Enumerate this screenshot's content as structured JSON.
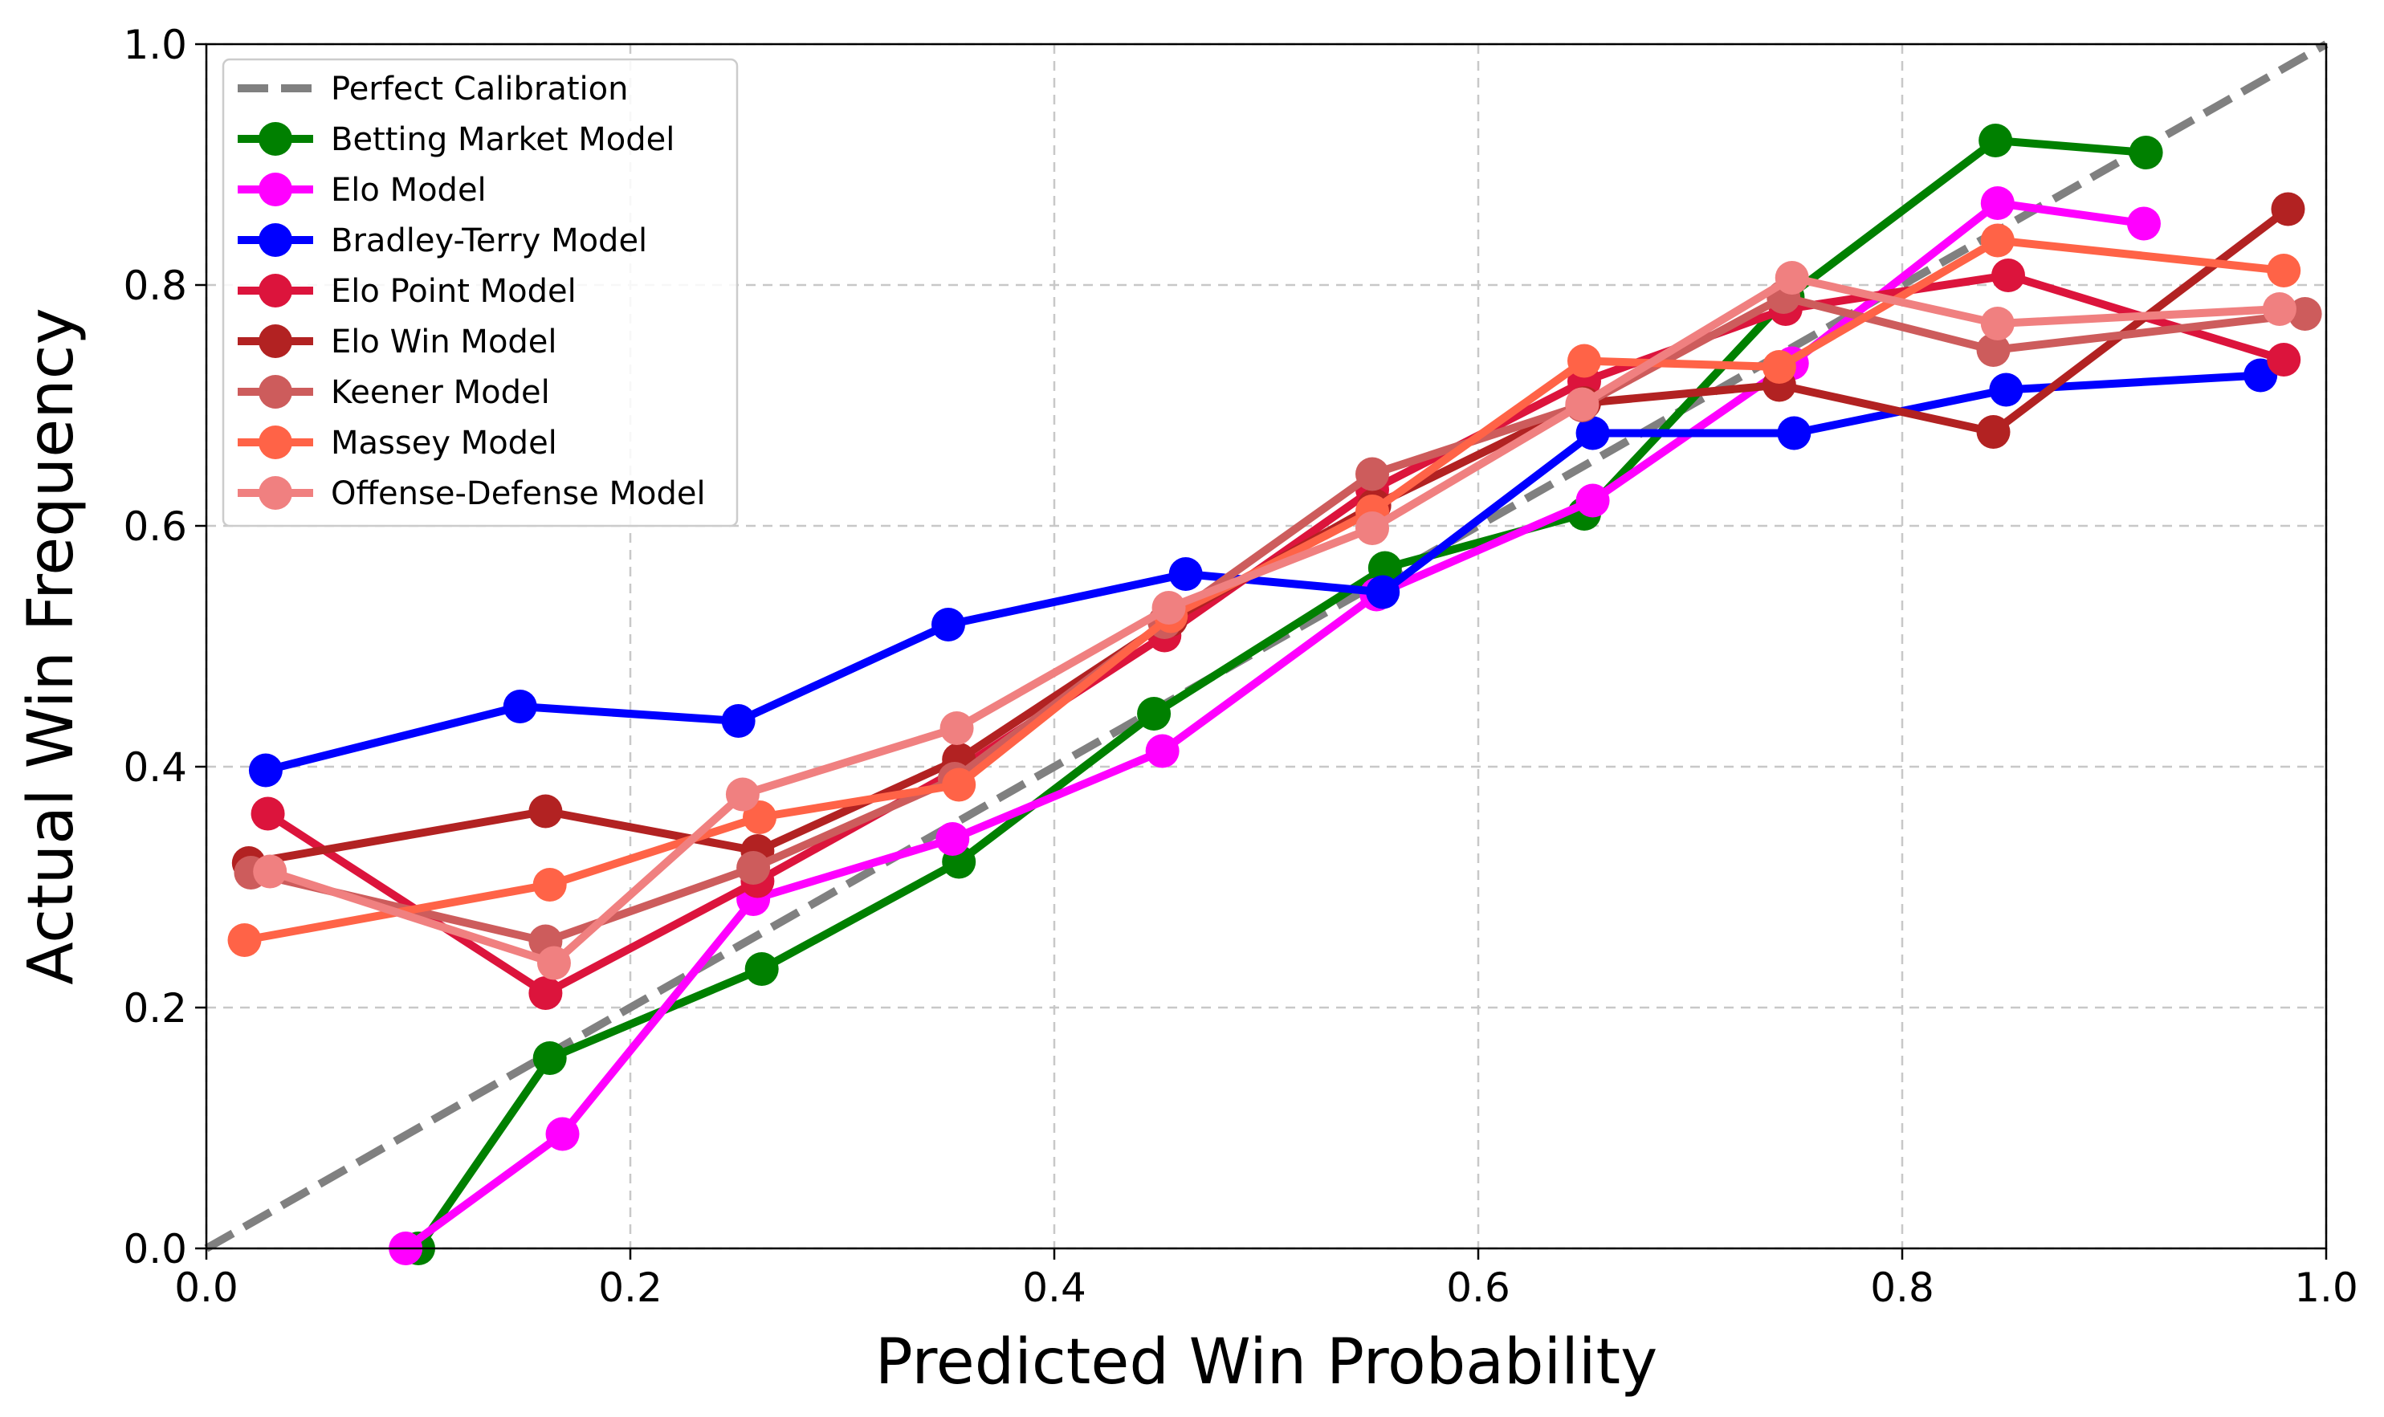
{
  "chart_data": {
    "type": "line",
    "xlabel": "Predicted Win Probability",
    "ylabel": "Actual Win Frequency",
    "xlim": [
      0.0,
      1.0
    ],
    "ylim": [
      0.0,
      1.0
    ],
    "xticks": [
      0.0,
      0.2,
      0.4,
      0.6,
      0.8,
      1.0
    ],
    "yticks": [
      0.0,
      0.2,
      0.4,
      0.6,
      0.8,
      1.0
    ],
    "xtick_labels": [
      "0.0",
      "0.2",
      "0.4",
      "0.6",
      "0.8",
      "1.0"
    ],
    "ytick_labels": [
      "0.0",
      "0.2",
      "0.4",
      "0.6",
      "0.8",
      "1.0"
    ],
    "grid": true,
    "legend_position": "top-left",
    "reference_line": {
      "name": "Perfect Calibration",
      "color": "#808080",
      "x": [
        0.0,
        1.0
      ],
      "y": [
        0.0,
        1.0
      ]
    },
    "series": [
      {
        "name": "Betting Market Model",
        "color": "#008000",
        "x": [
          0.1,
          0.162,
          0.262,
          0.355,
          0.447,
          0.556,
          0.65,
          0.746,
          0.844,
          0.915
        ],
        "y": [
          0.0,
          0.158,
          0.232,
          0.321,
          0.444,
          0.565,
          0.61,
          0.79,
          0.92,
          0.91
        ]
      },
      {
        "name": "Elo Model",
        "color": "#ff00ff",
        "x": [
          0.094,
          0.168,
          0.258,
          0.352,
          0.451,
          0.552,
          0.654,
          0.748,
          0.845,
          0.914
        ],
        "y": [
          0.0,
          0.095,
          0.29,
          0.34,
          0.413,
          0.543,
          0.621,
          0.735,
          0.868,
          0.851
        ]
      },
      {
        "name": "Bradley-Terry Model",
        "color": "#0000ff",
        "x": [
          0.028,
          0.148,
          0.251,
          0.35,
          0.462,
          0.555,
          0.654,
          0.749,
          0.849,
          0.969
        ],
        "y": [
          0.397,
          0.45,
          0.438,
          0.518,
          0.56,
          0.545,
          0.677,
          0.677,
          0.713,
          0.725
        ]
      },
      {
        "name": "Elo Point Model",
        "color": "#dc143c",
        "x": [
          0.029,
          0.16,
          0.26,
          0.354,
          0.452,
          0.55,
          0.65,
          0.745,
          0.85,
          0.98
        ],
        "y": [
          0.361,
          0.212,
          0.305,
          0.397,
          0.509,
          0.63,
          0.72,
          0.78,
          0.808,
          0.738
        ]
      },
      {
        "name": "Elo Win Model",
        "color": "#b22222",
        "x": [
          0.02,
          0.16,
          0.26,
          0.355,
          0.455,
          0.551,
          0.65,
          0.742,
          0.843,
          0.982
        ],
        "y": [
          0.32,
          0.363,
          0.33,
          0.406,
          0.522,
          0.617,
          0.702,
          0.717,
          0.678,
          0.863
        ]
      },
      {
        "name": "Keener Model",
        "color": "#cd5c5c",
        "x": [
          0.021,
          0.16,
          0.258,
          0.353,
          0.452,
          0.55,
          0.649,
          0.744,
          0.843,
          0.99
        ],
        "y": [
          0.312,
          0.255,
          0.316,
          0.39,
          0.52,
          0.643,
          0.7,
          0.79,
          0.746,
          0.776
        ]
      },
      {
        "name": "Massey Model",
        "color": "#ff6347",
        "x": [
          0.018,
          0.162,
          0.261,
          0.355,
          0.455,
          0.55,
          0.65,
          0.742,
          0.845,
          0.98
        ],
        "y": [
          0.256,
          0.302,
          0.358,
          0.385,
          0.525,
          0.612,
          0.737,
          0.732,
          0.837,
          0.812
        ]
      },
      {
        "name": "Offense-Defense Model",
        "color": "#f08080",
        "x": [
          0.03,
          0.164,
          0.253,
          0.354,
          0.454,
          0.55,
          0.649,
          0.748,
          0.845,
          0.978
        ],
        "y": [
          0.313,
          0.237,
          0.377,
          0.432,
          0.532,
          0.598,
          0.701,
          0.806,
          0.768,
          0.78
        ]
      }
    ]
  }
}
